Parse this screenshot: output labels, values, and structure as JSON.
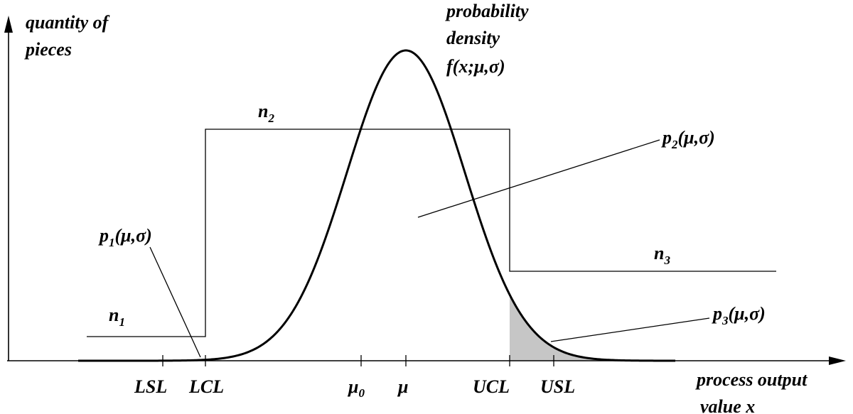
{
  "y_axis_label": [
    "quantity of",
    "pieces"
  ],
  "x_axis_label": [
    "process output",
    "value  x"
  ],
  "density_label": [
    "probability",
    "density",
    "f(x;μ,σ)"
  ],
  "ticks": {
    "lsl": "LSL",
    "lcl": "LCL",
    "mu0": "μ",
    "mu0_sub": "0",
    "mu": "μ",
    "ucl": "UCL",
    "usl": "USL"
  },
  "regions": {
    "n1": "n",
    "n1_sub": "1",
    "n2": "n",
    "n2_sub": "2",
    "n3": "n",
    "n3_sub": "3"
  },
  "probabilities": {
    "p1": "p",
    "p1_sub": "1",
    "p1_args": "(μ,σ)",
    "p2": "p",
    "p2_sub": "2",
    "p2_args": "(μ,σ)",
    "p3": "p",
    "p3_sub": "3",
    "p3_args": "(μ,σ)"
  },
  "colors": {
    "line": "#000000",
    "shade": "#c6c6c6",
    "background": "#ffffff"
  }
}
